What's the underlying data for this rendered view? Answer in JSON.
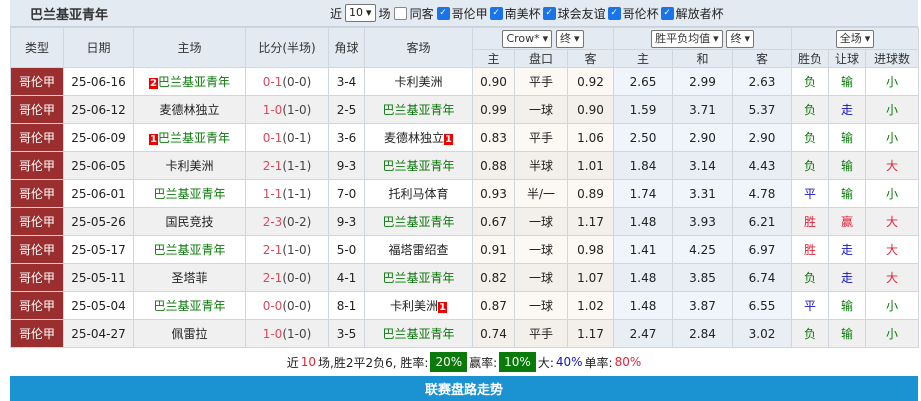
{
  "title": "巴兰基亚青年",
  "filters": {
    "near_label": "近",
    "count": "10",
    "unit": "场",
    "same_label": "同客",
    "competitions": [
      {
        "label": "哥伦甲",
        "checked": true
      },
      {
        "label": "南美杯",
        "checked": true
      },
      {
        "label": "球会友谊",
        "checked": true
      },
      {
        "label": "哥伦杯",
        "checked": true
      },
      {
        "label": "解放者杯",
        "checked": true
      }
    ]
  },
  "header": {
    "type": "类型",
    "date": "日期",
    "home": "主场",
    "score": "比分(半场)",
    "corner": "角球",
    "away": "客场",
    "company": "Crow*",
    "odds_stage": "终",
    "euro_select": "胜平负均值",
    "euro_stage": "终",
    "period": "全场",
    "asian": [
      "主",
      "盘口",
      "客"
    ],
    "euro": [
      "主",
      "和",
      "客"
    ],
    "result": [
      "胜负",
      "让球",
      "进球数"
    ]
  },
  "rows": [
    {
      "type": "哥伦甲",
      "date": "25-06-16",
      "home": "巴兰基亚青年",
      "home_card": "2",
      "home_team": true,
      "score": "0-1",
      "half": "(0-0)",
      "corner": "3-4",
      "away": "卡利美洲",
      "away_card": "",
      "away_team": false,
      "a1": "0.90",
      "pan": "平手",
      "a2": "0.92",
      "e1": "2.65",
      "e2": "2.99",
      "e3": "2.63",
      "wl": "负",
      "rq": "输",
      "jq": "小"
    },
    {
      "type": "哥伦甲",
      "date": "25-06-12",
      "home": "麦德林独立",
      "home_card": "",
      "home_team": false,
      "score": "1-0",
      "half": "(1-0)",
      "corner": "2-5",
      "away": "巴兰基亚青年",
      "away_card": "",
      "away_team": true,
      "a1": "0.99",
      "pan": "一球",
      "a2": "0.90",
      "e1": "1.59",
      "e2": "3.71",
      "e3": "5.37",
      "wl": "负",
      "rq": "走",
      "jq": "小"
    },
    {
      "type": "哥伦甲",
      "date": "25-06-09",
      "home": "巴兰基亚青年",
      "home_card": "1",
      "home_team": true,
      "score": "0-1",
      "half": "(0-1)",
      "corner": "3-6",
      "away": "麦德林独立",
      "away_card": "1",
      "away_team": false,
      "a1": "0.83",
      "pan": "平手",
      "a2": "1.06",
      "e1": "2.50",
      "e2": "2.90",
      "e3": "2.90",
      "wl": "负",
      "rq": "输",
      "jq": "小"
    },
    {
      "type": "哥伦甲",
      "date": "25-06-05",
      "home": "卡利美洲",
      "home_card": "",
      "home_team": false,
      "score": "2-1",
      "half": "(1-1)",
      "corner": "9-3",
      "away": "巴兰基亚青年",
      "away_card": "",
      "away_team": true,
      "a1": "0.88",
      "pan": "半球",
      "a2": "1.01",
      "e1": "1.84",
      "e2": "3.14",
      "e3": "4.43",
      "wl": "负",
      "rq": "输",
      "jq": "大"
    },
    {
      "type": "哥伦甲",
      "date": "25-06-01",
      "home": "巴兰基亚青年",
      "home_card": "",
      "home_team": true,
      "score": "1-1",
      "half": "(1-1)",
      "corner": "7-0",
      "away": "托利马体育",
      "away_card": "",
      "away_team": false,
      "a1": "0.93",
      "pan": "半/一",
      "a2": "0.89",
      "e1": "1.74",
      "e2": "3.31",
      "e3": "4.78",
      "wl": "平",
      "rq": "输",
      "jq": "小"
    },
    {
      "type": "哥伦甲",
      "date": "25-05-26",
      "home": "国民竞技",
      "home_card": "",
      "home_team": false,
      "score": "2-3",
      "half": "(0-2)",
      "corner": "9-3",
      "away": "巴兰基亚青年",
      "away_card": "",
      "away_team": true,
      "a1": "0.67",
      "pan": "一球",
      "a2": "1.17",
      "e1": "1.48",
      "e2": "3.93",
      "e3": "6.21",
      "wl": "胜",
      "rq": "赢",
      "jq": "大"
    },
    {
      "type": "哥伦甲",
      "date": "25-05-17",
      "home": "巴兰基亚青年",
      "home_card": "",
      "home_team": true,
      "score": "2-1",
      "half": "(1-0)",
      "corner": "5-0",
      "away": "福塔雷绍查",
      "away_card": "",
      "away_team": false,
      "a1": "0.91",
      "pan": "一球",
      "a2": "0.98",
      "e1": "1.41",
      "e2": "4.25",
      "e3": "6.97",
      "wl": "胜",
      "rq": "走",
      "jq": "大"
    },
    {
      "type": "哥伦甲",
      "date": "25-05-11",
      "home": "圣塔菲",
      "home_card": "",
      "home_team": false,
      "score": "2-1",
      "half": "(0-0)",
      "corner": "4-1",
      "away": "巴兰基亚青年",
      "away_card": "",
      "away_team": true,
      "a1": "0.82",
      "pan": "一球",
      "a2": "1.07",
      "e1": "1.48",
      "e2": "3.85",
      "e3": "6.74",
      "wl": "负",
      "rq": "走",
      "jq": "大"
    },
    {
      "type": "哥伦甲",
      "date": "25-05-04",
      "home": "巴兰基亚青年",
      "home_card": "",
      "home_team": true,
      "score": "0-0",
      "half": "(0-0)",
      "corner": "8-1",
      "away": "卡利美洲",
      "away_card": "1",
      "away_team": false,
      "a1": "0.87",
      "pan": "一球",
      "a2": "1.02",
      "e1": "1.48",
      "e2": "3.87",
      "e3": "6.55",
      "wl": "平",
      "rq": "输",
      "jq": "小"
    },
    {
      "type": "哥伦甲",
      "date": "25-04-27",
      "home": "佩雷拉",
      "home_card": "",
      "home_team": false,
      "score": "1-0",
      "half": "(1-0)",
      "corner": "3-5",
      "away": "巴兰基亚青年",
      "away_card": "",
      "away_team": true,
      "a1": "0.74",
      "pan": "平手",
      "a2": "1.17",
      "e1": "2.47",
      "e2": "2.84",
      "e3": "3.02",
      "wl": "负",
      "rq": "输",
      "jq": "小"
    }
  ],
  "summary": {
    "p1": "近",
    "n": "10",
    "p2": "场,胜2平2负6, 胜率:",
    "win_rate": "20%",
    "p3": "赢率:",
    "ying_rate": "10%",
    "p4": "大:",
    "big_rate": "40%",
    "p5": "单率:",
    "odd_rate": "80%"
  },
  "footer": "联赛盘路走势",
  "colors": {
    "type_bg": "#9b2f2f",
    "team": "#0a7a0a",
    "lose": "#0a7a0a",
    "win": "#e0243a",
    "draw": "#1414c8",
    "footer_bg": "#1b93d2"
  }
}
